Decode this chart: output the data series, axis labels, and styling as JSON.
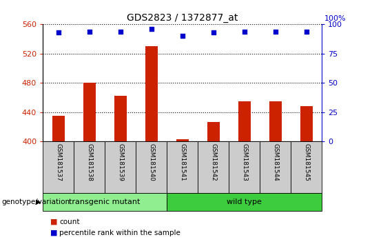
{
  "title": "GDS2823 / 1372877_at",
  "samples": [
    "GSM181537",
    "GSM181538",
    "GSM181539",
    "GSM181540",
    "GSM181541",
    "GSM181542",
    "GSM181543",
    "GSM181544",
    "GSM181545"
  ],
  "counts": [
    435,
    480,
    462,
    530,
    403,
    427,
    455,
    455,
    448
  ],
  "percentile_ranks": [
    93,
    94,
    94,
    96,
    90,
    93,
    94,
    94,
    94
  ],
  "groups": [
    {
      "label": "transgenic mutant",
      "start": 0,
      "end": 4,
      "color": "#90EE90"
    },
    {
      "label": "wild type",
      "start": 4,
      "end": 9,
      "color": "#3DCC3D"
    }
  ],
  "ylim_left": [
    400,
    560
  ],
  "ylim_right": [
    0,
    100
  ],
  "yticks_left": [
    400,
    440,
    480,
    520,
    560
  ],
  "yticks_right": [
    0,
    25,
    50,
    75,
    100
  ],
  "bar_color": "#CC2200",
  "dot_color": "#0000CC",
  "legend_items": [
    {
      "label": "count",
      "color": "#CC2200"
    },
    {
      "label": "percentile rank within the sample",
      "color": "#0000CC"
    }
  ],
  "genotype_label": "genotype/variation",
  "left_tick_color": "#CC2200",
  "right_tick_color": "#0000CC",
  "right_axis_label": "100%",
  "bar_width": 0.4
}
